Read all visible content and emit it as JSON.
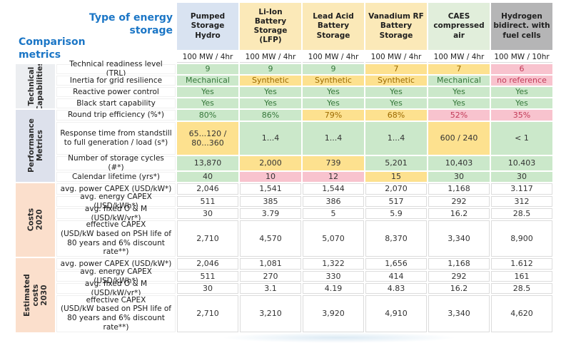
{
  "chart_data": {
    "type": "table",
    "corner": {
      "type_label": "Type of energy\nstorage",
      "metrics_label": "Comparison\nmetrics"
    },
    "columns": [
      {
        "name": "Pumped Storage Hydro",
        "rating": "100 MW / 4hr",
        "theme": "blue"
      },
      {
        "name": "Li-Ion Battery Storage (LFP)",
        "rating": "100 MW / 4hr",
        "theme": "yellow"
      },
      {
        "name": "Lead Acid Battery Storage",
        "rating": "100 MW / 4hr",
        "theme": "yellow"
      },
      {
        "name": "Vanadium RF Battery Storage",
        "rating": "100 MW / 4hr",
        "theme": "yellow"
      },
      {
        "name": "CAES compressed air",
        "rating": "100 MW / 4hr",
        "theme": "green"
      },
      {
        "name": "Hydrogen bidirect. with fuel cells",
        "rating": "100 MW / 10hr",
        "theme": "gray"
      }
    ],
    "sections": [
      {
        "label": "Technical\nCapabilities",
        "theme": "gray",
        "rows": [
          {
            "label": "Technical readiness level (TRL)",
            "cells": [
              [
                "9",
                "g",
                "g"
              ],
              [
                "9",
                "g",
                "g"
              ],
              [
                "9",
                "g",
                "g"
              ],
              [
                "7",
                "y",
                "y"
              ],
              [
                "7",
                "y",
                "y"
              ],
              [
                "6",
                "p",
                "r"
              ]
            ]
          },
          {
            "label": "Inertia for grid resilience",
            "cells": [
              [
                "Mechanical",
                "g",
                "g"
              ],
              [
                "Synthetic",
                "y",
                "y"
              ],
              [
                "Synthetic",
                "y",
                "y"
              ],
              [
                "Synthetic",
                "y",
                "y"
              ],
              [
                "Mechanical",
                "g",
                "g"
              ],
              [
                "no reference",
                "p",
                "r"
              ]
            ]
          },
          {
            "label": "Reactive power control",
            "cells": [
              [
                "Yes",
                "g",
                "g"
              ],
              [
                "Yes",
                "g",
                "g"
              ],
              [
                "Yes",
                "g",
                "g"
              ],
              [
                "Yes",
                "g",
                "g"
              ],
              [
                "Yes",
                "g",
                "g"
              ],
              [
                "Yes",
                "g",
                "g"
              ]
            ]
          },
          {
            "label": "Black start capability",
            "cells": [
              [
                "Yes",
                "g",
                "g"
              ],
              [
                "Yes",
                "g",
                "g"
              ],
              [
                "Yes",
                "g",
                "g"
              ],
              [
                "Yes",
                "g",
                "g"
              ],
              [
                "Yes",
                "g",
                "g"
              ],
              [
                "Yes",
                "g",
                "g"
              ]
            ]
          }
        ]
      },
      {
        "label": "Performance\nMetrics",
        "theme": "lavender",
        "rows": [
          {
            "label": "Round trip efficiency (%*)",
            "cells": [
              [
                "80%",
                "g",
                "g"
              ],
              [
                "86%",
                "g",
                "g"
              ],
              [
                "79%",
                "y",
                "y"
              ],
              [
                "68%",
                "y",
                "y"
              ],
              [
                "52%",
                "p",
                "r"
              ],
              [
                "35%",
                "p",
                "r"
              ]
            ]
          },
          {
            "label": "Response time from standstill to full generation / load (s*)",
            "cells": [
              [
                "65...120 / 80...360",
                "y",
                "d"
              ],
              [
                "1...4",
                "g",
                "d"
              ],
              [
                "1...4",
                "g",
                "d"
              ],
              [
                "1...4",
                "g",
                "d"
              ],
              [
                "600 / 240",
                "y",
                "d"
              ],
              [
                "< 1",
                "g",
                "d"
              ]
            ]
          },
          {
            "label": "Number of storage cycles (#*)",
            "cells": [
              [
                "13,870",
                "g",
                "d"
              ],
              [
                "2,000",
                "y",
                "d"
              ],
              [
                "739",
                "y",
                "d"
              ],
              [
                "5,201",
                "g",
                "d"
              ],
              [
                "10,403",
                "g",
                "d"
              ],
              [
                "10.403",
                "g",
                "d"
              ]
            ]
          },
          {
            "label": "Calendar lifetime (yrs*)",
            "cells": [
              [
                "40",
                "g",
                "d"
              ],
              [
                "10",
                "p",
                "d"
              ],
              [
                "12",
                "p",
                "d"
              ],
              [
                "15",
                "y",
                "d"
              ],
              [
                "30",
                "g",
                "d"
              ],
              [
                "30",
                "g",
                "d"
              ]
            ]
          }
        ]
      },
      {
        "label": "Costs  2020",
        "theme": "peach",
        "rows": [
          {
            "label": "avg. power CAPEX (USD/kW*)",
            "cells": [
              [
                "2,046",
                "w",
                "d"
              ],
              [
                "1,541",
                "w",
                "d"
              ],
              [
                "1,544",
                "w",
                "d"
              ],
              [
                "2,070",
                "w",
                "d"
              ],
              [
                "1,168",
                "w",
                "d"
              ],
              [
                "3.117",
                "w",
                "d"
              ]
            ]
          },
          {
            "label": "avg. energy CAPEX (USD/kWh*)",
            "cells": [
              [
                "511",
                "w",
                "d"
              ],
              [
                "385",
                "w",
                "d"
              ],
              [
                "386",
                "w",
                "d"
              ],
              [
                "517",
                "w",
                "d"
              ],
              [
                "292",
                "w",
                "d"
              ],
              [
                "312",
                "w",
                "d"
              ]
            ]
          },
          {
            "label": "avg. fixed O & M (USD/kW/yr*)",
            "cells": [
              [
                "30",
                "w",
                "d"
              ],
              [
                "3.79",
                "w",
                "d"
              ],
              [
                "5",
                "w",
                "d"
              ],
              [
                "5.9",
                "w",
                "d"
              ],
              [
                "16.2",
                "w",
                "d"
              ],
              [
                "28.5",
                "w",
                "d"
              ]
            ]
          },
          {
            "label": "effective CAPEX\n(USD/kW based on PSH life of 80 years and 6% discount rate**)",
            "cells": [
              [
                "2,710",
                "w",
                "d"
              ],
              [
                "4,570",
                "w",
                "d"
              ],
              [
                "5,070",
                "w",
                "d"
              ],
              [
                "8,370",
                "w",
                "d"
              ],
              [
                "3,340",
                "w",
                "d"
              ],
              [
                "8,900",
                "w",
                "d"
              ]
            ]
          }
        ]
      },
      {
        "label": "Estimated costs\n2030",
        "theme": "peach",
        "rows": [
          {
            "label": "avg. power CAPEX (USD/kW*)",
            "cells": [
              [
                "2,046",
                "w",
                "d"
              ],
              [
                "1,081",
                "w",
                "d"
              ],
              [
                "1,322",
                "w",
                "d"
              ],
              [
                "1,656",
                "w",
                "d"
              ],
              [
                "1,168",
                "w",
                "d"
              ],
              [
                "1.612",
                "w",
                "d"
              ]
            ]
          },
          {
            "label": "avg. energy CAPEX (USD/kWh*)",
            "cells": [
              [
                "511",
                "w",
                "d"
              ],
              [
                "270",
                "w",
                "d"
              ],
              [
                "330",
                "w",
                "d"
              ],
              [
                "414",
                "w",
                "d"
              ],
              [
                "292",
                "w",
                "d"
              ],
              [
                "161",
                "w",
                "d"
              ]
            ]
          },
          {
            "label": "avg. fixed O & M (USD/kW/yr*)",
            "cells": [
              [
                "30",
                "w",
                "d"
              ],
              [
                "3.1",
                "w",
                "d"
              ],
              [
                "4.19",
                "w",
                "d"
              ],
              [
                "4.83",
                "w",
                "d"
              ],
              [
                "16.2",
                "w",
                "d"
              ],
              [
                "28.5",
                "w",
                "d"
              ]
            ]
          },
          {
            "label": "effective CAPEX\n(USD/kW based on PSH life of 80 years and 6% discount rate**)",
            "cells": [
              [
                "2,710",
                "w",
                "d"
              ],
              [
                "3,210",
                "w",
                "d"
              ],
              [
                "3,920",
                "w",
                "d"
              ],
              [
                "4,910",
                "w",
                "d"
              ],
              [
                "3,340",
                "w",
                "d"
              ],
              [
                "4,620",
                "w",
                "d"
              ]
            ]
          }
        ]
      }
    ],
    "colors": {
      "title_blue": "#1b76c6",
      "header_themes": {
        "blue": "#d9e3f1",
        "yellow": "#fbe9b8",
        "green": "#e1eedb",
        "gray": "#b5b5b6"
      },
      "sidebar_themes": {
        "gray": "#eceef1",
        "lavender": "#dde1ec",
        "peach": "#fbdfcc"
      },
      "cell_bg": {
        "g": "#cbe8ca",
        "y": "#fde18f",
        "p": "#f8c3ce",
        "w": "#ffffff"
      },
      "cell_fg": {
        "g": "#35773a",
        "y": "#9c6a00",
        "r": "#c23a58",
        "d": "#333333"
      }
    }
  }
}
